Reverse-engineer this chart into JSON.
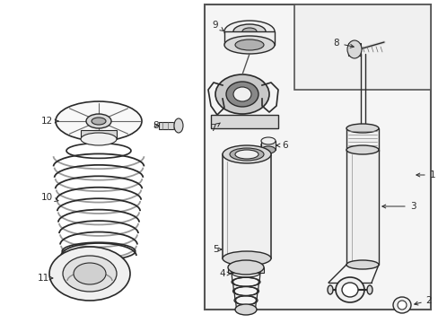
{
  "background_color": "#ffffff",
  "line_color": "#2a2a2a",
  "fill_light": "#f0f0f0",
  "fill_mid": "#d8d8d8",
  "fill_dark": "#b0b0b0",
  "figsize": [
    4.89,
    3.6
  ],
  "dpi": 100,
  "label_fs": 7,
  "arrow_color": "#222222"
}
